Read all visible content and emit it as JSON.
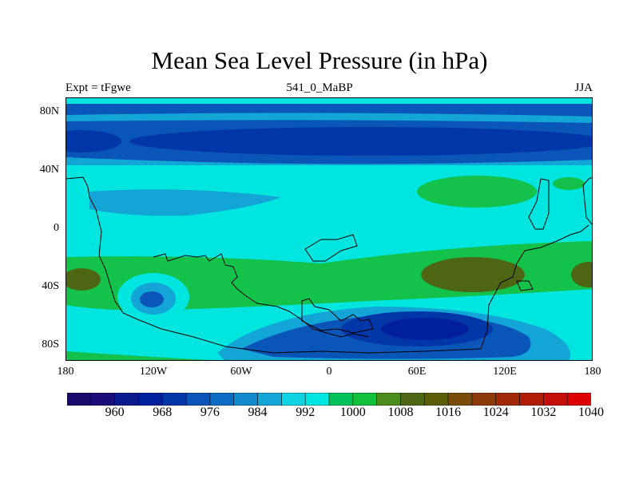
{
  "title": "Mean Sea Level Pressure (in hPa)",
  "subtitle_left": "Expt = tFgwe",
  "subtitle_center": "541_0_MaBP",
  "subtitle_right": "JJA",
  "lat_labels": [
    "80N",
    "40N",
    "0",
    "40S",
    "80S"
  ],
  "lon_labels": [
    "180",
    "120W",
    "60W",
    "0",
    "60E",
    "120E",
    "180"
  ],
  "colorbar": {
    "labels": [
      "960",
      "968",
      "976",
      "984",
      "992",
      "1000",
      "1008",
      "1016",
      "1024",
      "1032",
      "1040"
    ],
    "colors": [
      "#1a0a6b",
      "#1a0d7a",
      "#0b1a8c",
      "#001f9c",
      "#0037a8",
      "#0a55b8",
      "#0c6cc4",
      "#1189cc",
      "#12a5d6",
      "#11d2e0",
      "#00e5e0",
      "#00c15a",
      "#12c13c",
      "#4c8c1a",
      "#4e6614",
      "#5c5f0a",
      "#7a4c0a",
      "#8f3a0a",
      "#a02a08",
      "#b01c08",
      "#c40e0a",
      "#dd0005"
    ]
  },
  "map_colors": {
    "ocean_base": "#00e5e0",
    "mid_blue": "#0a55b8",
    "band_blue": "#0037a8",
    "deep_blue": "#001f9c",
    "light_blue": "#12a5d6",
    "green": "#14c14b",
    "olive": "#4e6614",
    "coast": "#000000"
  }
}
